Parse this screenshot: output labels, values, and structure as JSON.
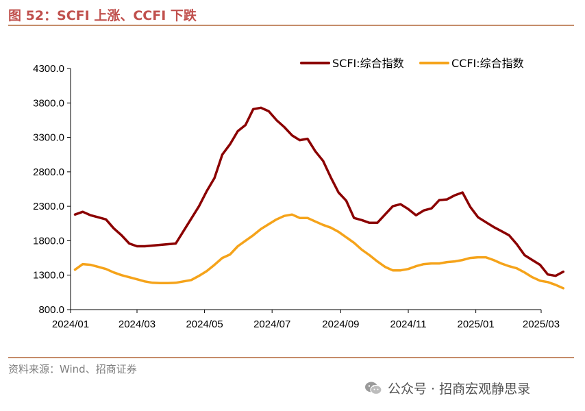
{
  "figure": {
    "title": "图 52：SCFI 上涨、CCFI 下跌",
    "source": "资料来源：Wind、招商证券",
    "watermark": "公众号 · 招商宏观静思录"
  },
  "colors": {
    "scfi": "#8b0000",
    "ccfi": "#f5a31a",
    "accent": "#c0504d"
  },
  "chart_data": {
    "type": "line",
    "x_start": "2024-01-05",
    "x_end": "2025-03-07",
    "x_ticks": [
      "2024/01",
      "2024/03",
      "2024/05",
      "2024/07",
      "2024/09",
      "2024/11",
      "2025/01",
      "2025/03"
    ],
    "x_tick_dates": [
      "2024-01-01",
      "2024-03-01",
      "2024-05-01",
      "2024-07-01",
      "2024-09-01",
      "2024-11-01",
      "2025-01-01",
      "2025-03-01"
    ],
    "ylim": [
      800,
      4300
    ],
    "y_ticks": [
      "800.0",
      "1300.0",
      "1800.0",
      "2300.0",
      "2800.0",
      "3300.0",
      "3800.0",
      "4300.0"
    ],
    "legend_position": "top-right",
    "grid": false,
    "series": [
      {
        "name": "SCFI:综合指数",
        "color": "#8b0000",
        "values": [
          2180,
          2220,
          2170,
          2140,
          2110,
          1980,
          1880,
          1760,
          1720,
          1720,
          1730,
          1740,
          1750,
          1760,
          1940,
          2120,
          2300,
          2520,
          2710,
          3050,
          3200,
          3390,
          3480,
          3710,
          3730,
          3680,
          3550,
          3450,
          3330,
          3260,
          3280,
          3100,
          2960,
          2720,
          2500,
          2380,
          2130,
          2100,
          2060,
          2060,
          2180,
          2300,
          2330,
          2260,
          2170,
          2240,
          2270,
          2390,
          2400,
          2460,
          2500,
          2290,
          2140,
          2070,
          2000,
          1940,
          1880,
          1750,
          1590,
          1520,
          1450,
          1310,
          1290,
          1350
        ]
      },
      {
        "name": "CCFI:综合指数",
        "color": "#f5a31a",
        "values": [
          1380,
          1460,
          1450,
          1420,
          1390,
          1340,
          1300,
          1270,
          1240,
          1210,
          1190,
          1185,
          1185,
          1190,
          1210,
          1230,
          1290,
          1360,
          1450,
          1550,
          1600,
          1720,
          1800,
          1880,
          1970,
          2040,
          2110,
          2160,
          2180,
          2130,
          2130,
          2080,
          2030,
          1990,
          1930,
          1850,
          1770,
          1670,
          1590,
          1500,
          1420,
          1370,
          1370,
          1390,
          1430,
          1460,
          1470,
          1470,
          1490,
          1500,
          1520,
          1550,
          1560,
          1560,
          1520,
          1470,
          1430,
          1400,
          1340,
          1270,
          1220,
          1200,
          1160,
          1110
        ]
      }
    ]
  }
}
